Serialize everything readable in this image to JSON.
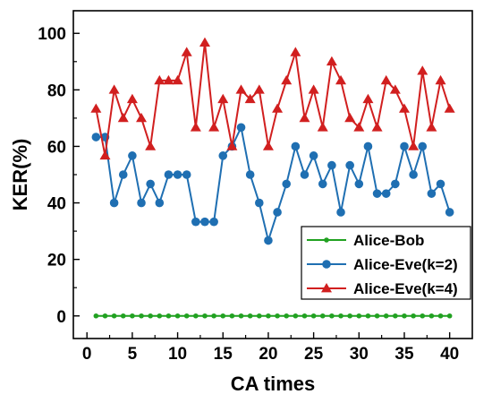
{
  "chart_data": {
    "type": "line",
    "title": "",
    "xlabel": "CA times",
    "ylabel": "KER(%)",
    "xlim": [
      -1.5,
      42.5
    ],
    "ylim": [
      -8,
      108
    ],
    "xticks": [
      0,
      5,
      10,
      15,
      20,
      25,
      30,
      35,
      40
    ],
    "yticks": [
      0,
      20,
      40,
      60,
      80,
      100
    ],
    "grid": false,
    "legend_position": "bottom-right",
    "x": [
      1,
      2,
      3,
      4,
      5,
      6,
      7,
      8,
      9,
      10,
      11,
      12,
      13,
      14,
      15,
      16,
      17,
      18,
      19,
      20,
      21,
      22,
      23,
      24,
      25,
      26,
      27,
      28,
      29,
      30,
      31,
      32,
      33,
      34,
      35,
      36,
      37,
      38,
      39,
      40
    ],
    "series": [
      {
        "name": "Alice-Bob",
        "color": "#21a121",
        "marker": "circle-small",
        "values": [
          0,
          0,
          0,
          0,
          0,
          0,
          0,
          0,
          0,
          0,
          0,
          0,
          0,
          0,
          0,
          0,
          0,
          0,
          0,
          0,
          0,
          0,
          0,
          0,
          0,
          0,
          0,
          0,
          0,
          0,
          0,
          0,
          0,
          0,
          0,
          0,
          0,
          0,
          0,
          0
        ]
      },
      {
        "name": "Alice-Eve(k=2)",
        "color": "#1f6fb2",
        "marker": "circle",
        "values": [
          63.3,
          63.3,
          40,
          50,
          56.7,
          40,
          46.7,
          40,
          50,
          50,
          50,
          33.3,
          33.3,
          33.3,
          56.7,
          60,
          66.7,
          50,
          40,
          26.7,
          36.7,
          46.7,
          60,
          50,
          56.7,
          46.7,
          53.3,
          36.7,
          53.3,
          46.7,
          60,
          43.3,
          43.3,
          46.7,
          60,
          50,
          60,
          43.3,
          46.7,
          36.7
        ]
      },
      {
        "name": "Alice-Eve(k=4)",
        "color": "#d11f1f",
        "marker": "triangle",
        "values": [
          73.3,
          56.7,
          80,
          70,
          76.7,
          70,
          60,
          83.3,
          83.3,
          83.3,
          93.3,
          66.7,
          96.7,
          66.7,
          76.7,
          60,
          80,
          76.7,
          80,
          60,
          73.3,
          83.3,
          93.3,
          70,
          80,
          66.7,
          90,
          83.3,
          70,
          66.7,
          76.7,
          66.7,
          83.3,
          80,
          73.3,
          60,
          86.7,
          66.7,
          83.3,
          73.3
        ]
      }
    ]
  }
}
